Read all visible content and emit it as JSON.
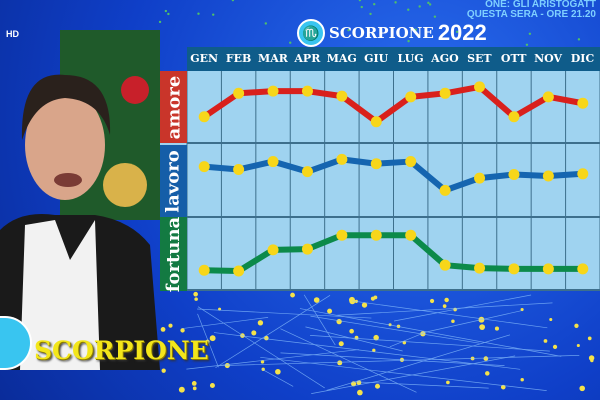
{
  "channel": {
    "badge": "HD"
  },
  "header": {
    "sign": "SCORPIONE",
    "year": "2022",
    "sign_icon": "scorpion-icon"
  },
  "ticker": {
    "line1": "ONE: GLI ARISTOGATT",
    "line2": "QUESTA SERA - ORE 21.20"
  },
  "lower_third": {
    "sign": "SCORPIONE",
    "icon": "scorpion-icon"
  },
  "chart_data": {
    "type": "line",
    "categories": [
      "GEN",
      "FEB",
      "MAR",
      "APR",
      "MAG",
      "GIU",
      "LUG",
      "AGO",
      "SET",
      "OTT",
      "NOV",
      "DIC"
    ],
    "ylim": [
      0,
      10
    ],
    "grid": true,
    "series": [
      {
        "name": "amore",
        "color": "#d9201c",
        "values": [
          3.7,
          7.0,
          7.3,
          7.3,
          6.6,
          3.0,
          6.5,
          7.0,
          7.9,
          3.7,
          6.5,
          5.6
        ]
      },
      {
        "name": "lavoro",
        "color": "#1565b0",
        "values": [
          7.0,
          6.6,
          7.7,
          6.3,
          8.0,
          7.4,
          7.7,
          3.7,
          5.4,
          5.9,
          5.7,
          6.0
        ]
      },
      {
        "name": "fortuna",
        "color": "#0c8a4a",
        "values": [
          2.7,
          2.6,
          5.5,
          5.6,
          7.5,
          7.5,
          7.5,
          3.4,
          3.0,
          2.9,
          2.9,
          2.9
        ]
      }
    ],
    "point_color": "#f7d61a"
  }
}
